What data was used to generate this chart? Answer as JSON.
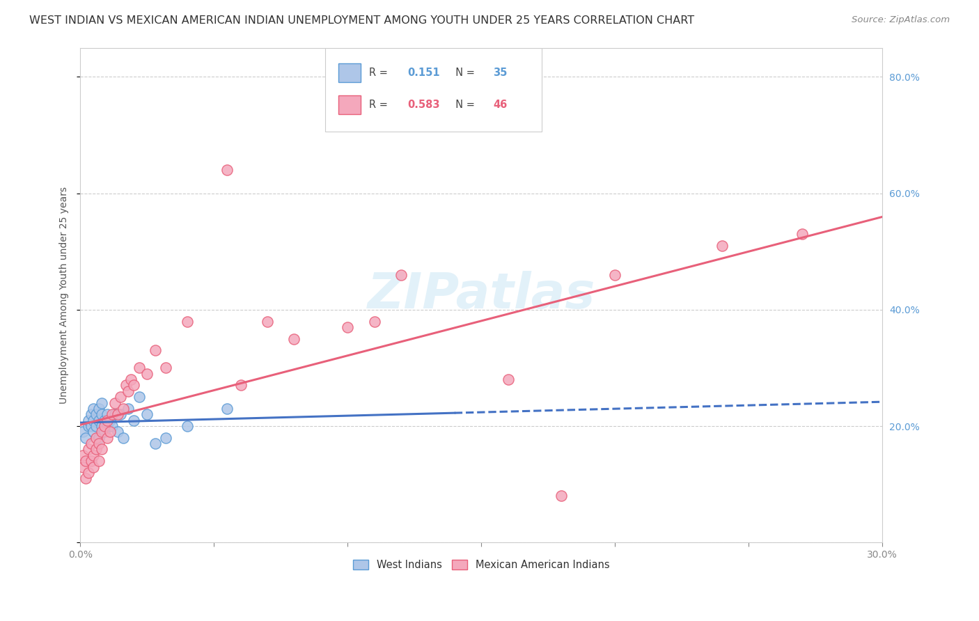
{
  "title": "WEST INDIAN VS MEXICAN AMERICAN INDIAN UNEMPLOYMENT AMONG YOUTH UNDER 25 YEARS CORRELATION CHART",
  "source": "Source: ZipAtlas.com",
  "ylabel": "Unemployment Among Youth under 25 years",
  "R_blue": 0.151,
  "N_blue": 35,
  "R_pink": 0.583,
  "N_pink": 46,
  "color_blue_fill": "#aec6e8",
  "color_pink_fill": "#f4a8bc",
  "color_blue_edge": "#5b9bd5",
  "color_pink_edge": "#e8607a",
  "color_blue_line": "#4472c4",
  "color_pink_line": "#e8607a",
  "color_blue_text": "#5b9bd5",
  "color_pink_text": "#e8607a",
  "background_color": "#ffffff",
  "watermark_color": "#d0e8f5",
  "grid_color": "#cccccc",
  "blue_scatter_x": [
    0.001,
    0.002,
    0.003,
    0.003,
    0.004,
    0.004,
    0.005,
    0.005,
    0.005,
    0.006,
    0.006,
    0.007,
    0.007,
    0.007,
    0.008,
    0.008,
    0.008,
    0.009,
    0.009,
    0.01,
    0.01,
    0.011,
    0.012,
    0.013,
    0.014,
    0.015,
    0.016,
    0.018,
    0.02,
    0.022,
    0.025,
    0.028,
    0.032,
    0.04,
    0.055
  ],
  "blue_scatter_y": [
    0.19,
    0.18,
    0.2,
    0.21,
    0.2,
    0.22,
    0.19,
    0.21,
    0.23,
    0.2,
    0.22,
    0.18,
    0.21,
    0.23,
    0.2,
    0.22,
    0.24,
    0.19,
    0.21,
    0.2,
    0.22,
    0.21,
    0.2,
    0.22,
    0.19,
    0.22,
    0.18,
    0.23,
    0.21,
    0.25,
    0.22,
    0.17,
    0.18,
    0.2,
    0.23
  ],
  "pink_scatter_x": [
    0.001,
    0.001,
    0.002,
    0.002,
    0.003,
    0.003,
    0.004,
    0.004,
    0.005,
    0.005,
    0.006,
    0.006,
    0.007,
    0.007,
    0.008,
    0.008,
    0.009,
    0.01,
    0.01,
    0.011,
    0.012,
    0.013,
    0.014,
    0.015,
    0.016,
    0.017,
    0.018,
    0.019,
    0.02,
    0.022,
    0.025,
    0.028,
    0.032,
    0.04,
    0.055,
    0.06,
    0.07,
    0.08,
    0.1,
    0.11,
    0.12,
    0.16,
    0.18,
    0.2,
    0.24,
    0.27
  ],
  "pink_scatter_y": [
    0.13,
    0.15,
    0.11,
    0.14,
    0.12,
    0.16,
    0.14,
    0.17,
    0.13,
    0.15,
    0.16,
    0.18,
    0.14,
    0.17,
    0.19,
    0.16,
    0.2,
    0.18,
    0.21,
    0.19,
    0.22,
    0.24,
    0.22,
    0.25,
    0.23,
    0.27,
    0.26,
    0.28,
    0.27,
    0.3,
    0.29,
    0.33,
    0.3,
    0.38,
    0.64,
    0.27,
    0.38,
    0.35,
    0.37,
    0.38,
    0.46,
    0.28,
    0.08,
    0.46,
    0.51,
    0.53
  ],
  "xlim": [
    0.0,
    0.3
  ],
  "ylim": [
    0.0,
    0.85
  ],
  "xticks": [
    0.0,
    0.05,
    0.1,
    0.15,
    0.2,
    0.25,
    0.3
  ],
  "yticks": [
    0.0,
    0.2,
    0.4,
    0.6,
    0.8
  ],
  "scatter_size": 120,
  "blue_line_solid_end": 0.14,
  "blue_line_end": 0.3,
  "pink_line_start": 0.0,
  "pink_line_end": 0.3
}
